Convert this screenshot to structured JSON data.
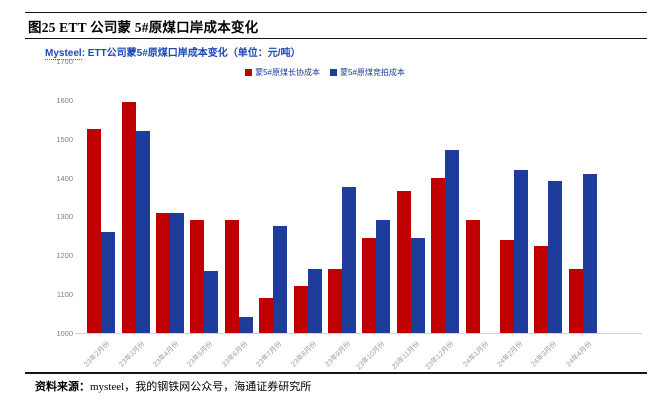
{
  "figure": {
    "caption": "图25 ETT 公司蒙 5#原煤口岸成本变化",
    "source_label": "资料来源：",
    "source_text": "mysteel，我的钢铁网公众号，海通证券研究所"
  },
  "chart_data": {
    "type": "bar",
    "title": "Mysteel: ETT公司蒙5#原煤口岸成本变化（单位：元/吨）",
    "title_brand": "Mysteel",
    "title_rest": ": ETT公司蒙5#原煤口岸成本变化（单位：元/吨）",
    "unit": "元/吨",
    "categories": [
      "23年2月份",
      "23年3月份",
      "23年4月份",
      "23年5月份",
      "23年6月份",
      "23年7月份",
      "23年8月份",
      "23年9月份",
      "23年10月份",
      "23年11月份",
      "23年12月份",
      "24年1月份",
      "24年2月份",
      "24年3月份",
      "24年4月份"
    ],
    "series": [
      {
        "name": "蒙5#原煤长协成本",
        "color": "#c00000",
        "values": [
          1525,
          1595,
          1310,
          1290,
          1290,
          1090,
          1120,
          1165,
          1245,
          1365,
          1400,
          1290,
          1240,
          1225,
          1165
        ]
      },
      {
        "name": "蒙5#原煤竞拍成本",
        "color": "#1e3c9b",
        "values": [
          1260,
          1520,
          1310,
          1160,
          1040,
          1275,
          1165,
          1375,
          1290,
          1245,
          1470,
          null,
          1420,
          1390,
          1410
        ]
      }
    ],
    "ylim": [
      1000,
      1700
    ],
    "yticks": [
      1000,
      1100,
      1200,
      1300,
      1400,
      1500,
      1600,
      1700
    ],
    "grid": false,
    "legend_position": "top"
  }
}
